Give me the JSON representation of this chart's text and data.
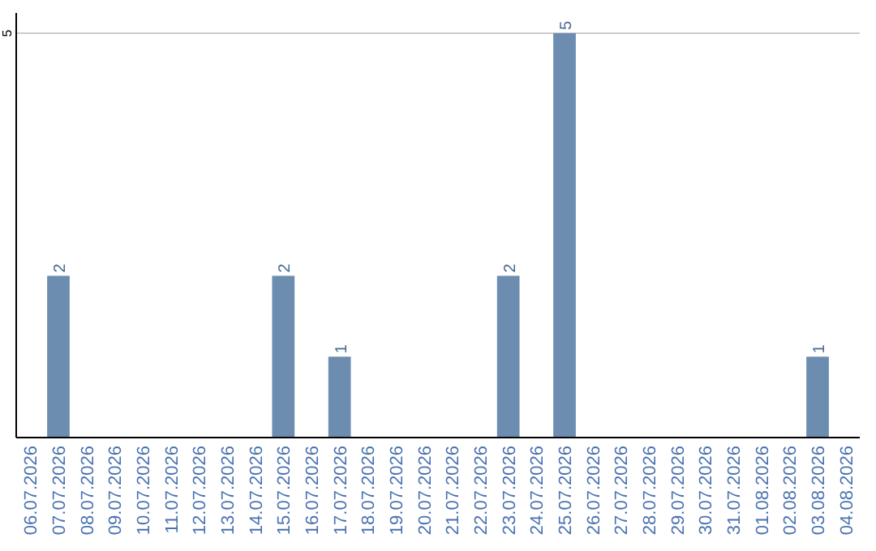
{
  "chart_data": {
    "type": "bar",
    "categories": [
      "06.07.2026",
      "07.07.2026",
      "08.07.2026",
      "09.07.2026",
      "10.07.2026",
      "11.07.2026",
      "12.07.2026",
      "13.07.2026",
      "14.07.2026",
      "15.07.2026",
      "16.07.2026",
      "17.07.2026",
      "18.07.2026",
      "19.07.2026",
      "20.07.2026",
      "21.07.2026",
      "22.07.2026",
      "23.07.2026",
      "24.07.2026",
      "25.07.2026",
      "26.07.2026",
      "27.07.2026",
      "28.07.2026",
      "29.07.2026",
      "30.07.2026",
      "31.07.2026",
      "01.08.2026",
      "02.08.2026",
      "03.08.2026",
      "04.08.2026"
    ],
    "values": [
      0,
      2,
      0,
      0,
      0,
      0,
      0,
      0,
      0,
      2,
      0,
      1,
      0,
      0,
      0,
      0,
      0,
      2,
      0,
      5,
      0,
      0,
      0,
      0,
      0,
      0,
      0,
      0,
      1,
      0
    ],
    "value_labels": [
      null,
      "2",
      null,
      null,
      null,
      null,
      null,
      null,
      null,
      "2",
      null,
      "1",
      null,
      null,
      null,
      null,
      null,
      "2",
      null,
      "5",
      null,
      null,
      null,
      null,
      null,
      null,
      null,
      null,
      "1",
      null
    ],
    "color": "#6c8db0",
    "ylim": [
      0,
      5.25
    ],
    "yticks": [
      5
    ],
    "grid": "y"
  }
}
